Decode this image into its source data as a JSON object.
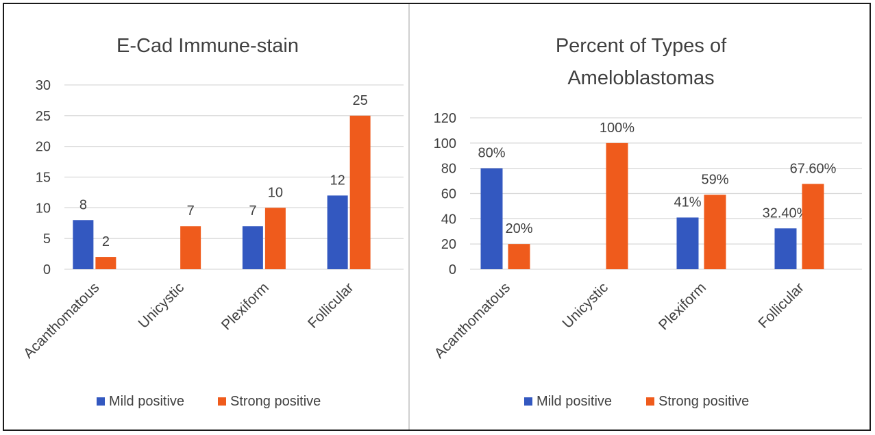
{
  "colors": {
    "mild": "#3358c0",
    "strong": "#ef5b1c",
    "grid": "#d9d9d9",
    "text": "#404040"
  },
  "chart_data": [
    {
      "type": "bar",
      "title": "E-Cad Immune-stain",
      "categories": [
        "Acanthomatous",
        "Unicystic",
        "Plexiform",
        "Follicular"
      ],
      "series": [
        {
          "name": "Mild positive",
          "values": [
            8,
            null,
            7,
            12
          ],
          "labels": [
            "8",
            null,
            "7",
            "12"
          ]
        },
        {
          "name": "Strong positive",
          "values": [
            2,
            7,
            10,
            25
          ],
          "labels": [
            "2",
            "7",
            "10",
            "25"
          ]
        }
      ],
      "ylim": [
        0,
        30
      ],
      "yticks": [
        0,
        5,
        10,
        15,
        20,
        25,
        30
      ],
      "grid": true,
      "legend": "bottom"
    },
    {
      "type": "bar",
      "title": "Percent of Types of Ameloblastomas",
      "title_lines": [
        "Percent of Types of",
        "Ameloblastomas"
      ],
      "categories": [
        "Acanthomatous",
        "Unicystic",
        "Plexiform",
        "Follicular"
      ],
      "series": [
        {
          "name": "Mild positive",
          "values": [
            80,
            null,
            41,
            32.4
          ],
          "labels": [
            "80%",
            null,
            "41%",
            "32.40%"
          ]
        },
        {
          "name": "Strong positive",
          "values": [
            20,
            100,
            59,
            67.6
          ],
          "labels": [
            "20%",
            "100%",
            "59%",
            "67.60%"
          ]
        }
      ],
      "ylim": [
        0,
        120
      ],
      "yticks": [
        0,
        20,
        40,
        60,
        80,
        100,
        120
      ],
      "grid": true,
      "legend": "bottom"
    }
  ]
}
